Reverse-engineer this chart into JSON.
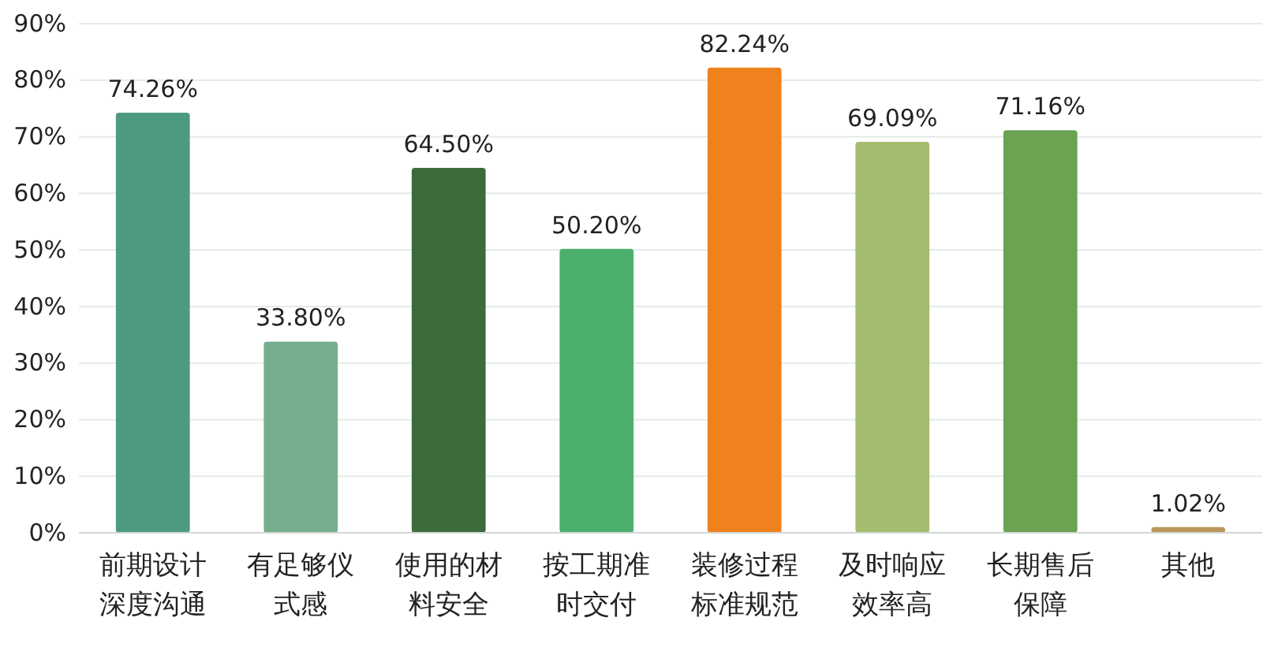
{
  "chart_data": {
    "type": "bar",
    "categories": [
      "前期设计深度沟通",
      "有足够仪式感",
      "使用的材料安全",
      "按工期准时交付",
      "装修过程标准规范",
      "及时响应效率高",
      "长期售后保障",
      "其他"
    ],
    "values": [
      74.26,
      33.8,
      64.5,
      50.2,
      82.24,
      69.09,
      71.16,
      1.02
    ],
    "colors": [
      "#4e9a80",
      "#76ae8e",
      "#3d6b3c",
      "#4caf6e",
      "#f0821e",
      "#a3bc6d",
      "#6aa352",
      "#b8965a"
    ],
    "value_labels": [
      "74.26%",
      "33.80%",
      "64.50%",
      "50.20%",
      "82.24%",
      "69.09%",
      "71.16%",
      "1.02%"
    ],
    "ylim": [
      0,
      90
    ],
    "yticks": [
      {
        "value": 0,
        "label": "0%"
      },
      {
        "value": 10,
        "label": "10%"
      },
      {
        "value": 20,
        "label": "20%"
      },
      {
        "value": 30,
        "label": "30%"
      },
      {
        "value": 40,
        "label": "40%"
      },
      {
        "value": 50,
        "label": "50%"
      },
      {
        "value": 60,
        "label": "60%"
      },
      {
        "value": 70,
        "label": "70%"
      },
      {
        "value": 80,
        "label": "80%"
      },
      {
        "value": 90,
        "label": "90%"
      }
    ],
    "grid": "y"
  }
}
